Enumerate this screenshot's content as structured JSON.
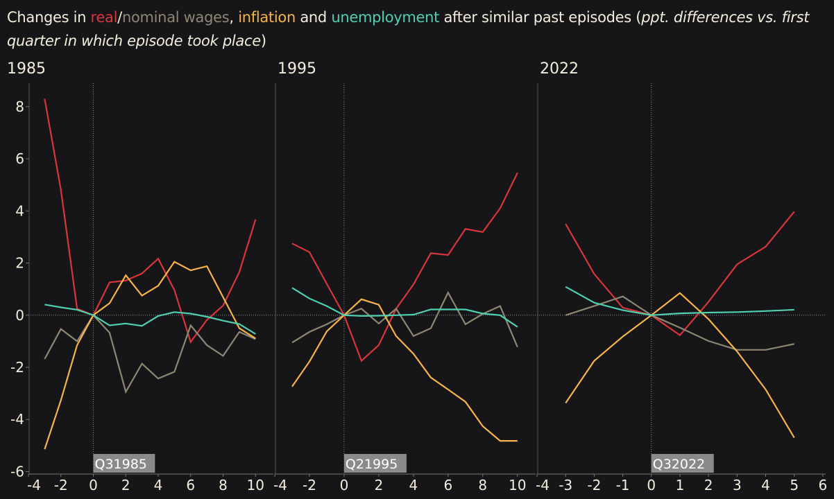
{
  "title": {
    "prefix": "Changes in ",
    "real": "real",
    "slash": "/",
    "nominal": "nominal wages",
    "comma": ", ",
    "inflation": "inflation",
    "and": " and ",
    "unemployment": "unemployment",
    "suffix": " after similar past episodes (",
    "note": "ppt. differences vs. first quarter in which episode took place",
    "close": ")"
  },
  "colors": {
    "real": "#d9363b",
    "nominal": "#8e8774",
    "inflation": "#f6b44b",
    "unemployment": "#4fd0b0",
    "marker": "#8a8a8a"
  },
  "chart_data": [
    {
      "type": "line",
      "title": "1985",
      "marker_label": "Q31985",
      "x": [
        -3,
        -2,
        -1,
        0,
        1,
        2,
        3,
        4,
        5,
        6,
        7,
        8,
        9,
        10
      ],
      "xticks": [
        -4,
        -2,
        0,
        2,
        4,
        6,
        8,
        10
      ],
      "xlim": [
        -4,
        11.1
      ],
      "yticks": [
        -6,
        -4,
        -2,
        0,
        2,
        4,
        6,
        8
      ],
      "ylim": [
        -6.2,
        8.9
      ],
      "series": [
        {
          "name": "real wages",
          "key": "real",
          "values": [
            8.3,
            4.8,
            0.25,
            0,
            1.26,
            1.33,
            1.6,
            2.17,
            0.96,
            -1.03,
            -0.18,
            0.37,
            1.65,
            3.67
          ]
        },
        {
          "name": "nominal wages",
          "key": "nominal",
          "values": [
            -1.68,
            -0.53,
            -1.0,
            0,
            -0.67,
            -2.94,
            -1.86,
            -2.43,
            -2.17,
            -0.39,
            -1.15,
            -1.56,
            -0.64,
            -0.92
          ]
        },
        {
          "name": "inflation",
          "key": "inflation",
          "values": [
            -5.14,
            -3.26,
            -1.15,
            0,
            0.46,
            1.53,
            0.75,
            1.13,
            2.05,
            1.72,
            1.88,
            0.69,
            -0.5,
            -0.89
          ]
        },
        {
          "name": "unemployment",
          "key": "unemployment",
          "values": [
            0.41,
            0.3,
            0.21,
            0,
            -0.39,
            -0.32,
            -0.41,
            -0.03,
            0.12,
            0.06,
            -0.06,
            -0.21,
            -0.34,
            -0.72
          ]
        }
      ]
    },
    {
      "type": "line",
      "title": "1995",
      "marker_label": "Q21995",
      "x": [
        -3,
        -2,
        -1,
        0,
        1,
        2,
        3,
        4,
        5,
        6,
        7,
        8,
        9,
        10
      ],
      "xticks": [
        -4,
        -2,
        0,
        2,
        4,
        6,
        8,
        10
      ],
      "xlim": [
        -4,
        11.05
      ],
      "yticks": [],
      "ylim": [
        -6.2,
        8.9
      ],
      "series": [
        {
          "name": "real wages",
          "key": "real",
          "values": [
            2.75,
            2.42,
            1.2,
            0,
            -1.75,
            -1.15,
            0.25,
            1.18,
            2.38,
            2.31,
            3.31,
            3.19,
            4.1,
            5.46
          ]
        },
        {
          "name": "nominal wages",
          "key": "nominal",
          "values": [
            -1.05,
            -0.64,
            -0.35,
            0,
            0.25,
            -0.32,
            0.25,
            -0.8,
            -0.5,
            0.87,
            -0.35,
            0.05,
            0.35,
            -1.22
          ]
        },
        {
          "name": "inflation",
          "key": "inflation",
          "values": [
            -2.74,
            -1.78,
            -0.62,
            0,
            0.61,
            0.4,
            -0.8,
            -1.48,
            -2.39,
            -2.85,
            -3.32,
            -4.26,
            -4.82,
            -4.82
          ]
        },
        {
          "name": "unemployment",
          "key": "unemployment",
          "values": [
            1.05,
            0.64,
            0.35,
            0,
            -0.03,
            -0.02,
            0,
            0.02,
            0.22,
            0.22,
            0.22,
            0.06,
            0,
            -0.45
          ]
        }
      ]
    },
    {
      "type": "line",
      "title": "2022",
      "marker_label": "Q32022",
      "x": [
        -3,
        -2,
        -1,
        0,
        1,
        2,
        3,
        4,
        5
      ],
      "xticks": [
        -4,
        -3,
        -2,
        -1,
        0,
        1,
        2,
        3,
        4,
        5,
        6
      ],
      "xlim": [
        -4,
        6.1
      ],
      "yticks": [],
      "ylim": [
        -6.2,
        8.9
      ],
      "series": [
        {
          "name": "real wages",
          "key": "real",
          "values": [
            3.5,
            1.58,
            0.29,
            0,
            -0.77,
            0.51,
            1.95,
            2.63,
            3.97
          ]
        },
        {
          "name": "nominal wages",
          "key": "nominal",
          "values": [
            0,
            0.35,
            0.72,
            0,
            -0.48,
            -0.99,
            -1.33,
            -1.33,
            -1.1
          ]
        },
        {
          "name": "inflation",
          "key": "inflation",
          "values": [
            -3.37,
            -1.75,
            -0.82,
            0,
            0.85,
            -0.15,
            -1.39,
            -2.85,
            -4.7
          ]
        },
        {
          "name": "unemployment",
          "key": "unemployment",
          "values": [
            1.09,
            0.48,
            0.19,
            0,
            0.07,
            0.1,
            0.12,
            0.16,
            0.21
          ]
        }
      ]
    }
  ]
}
